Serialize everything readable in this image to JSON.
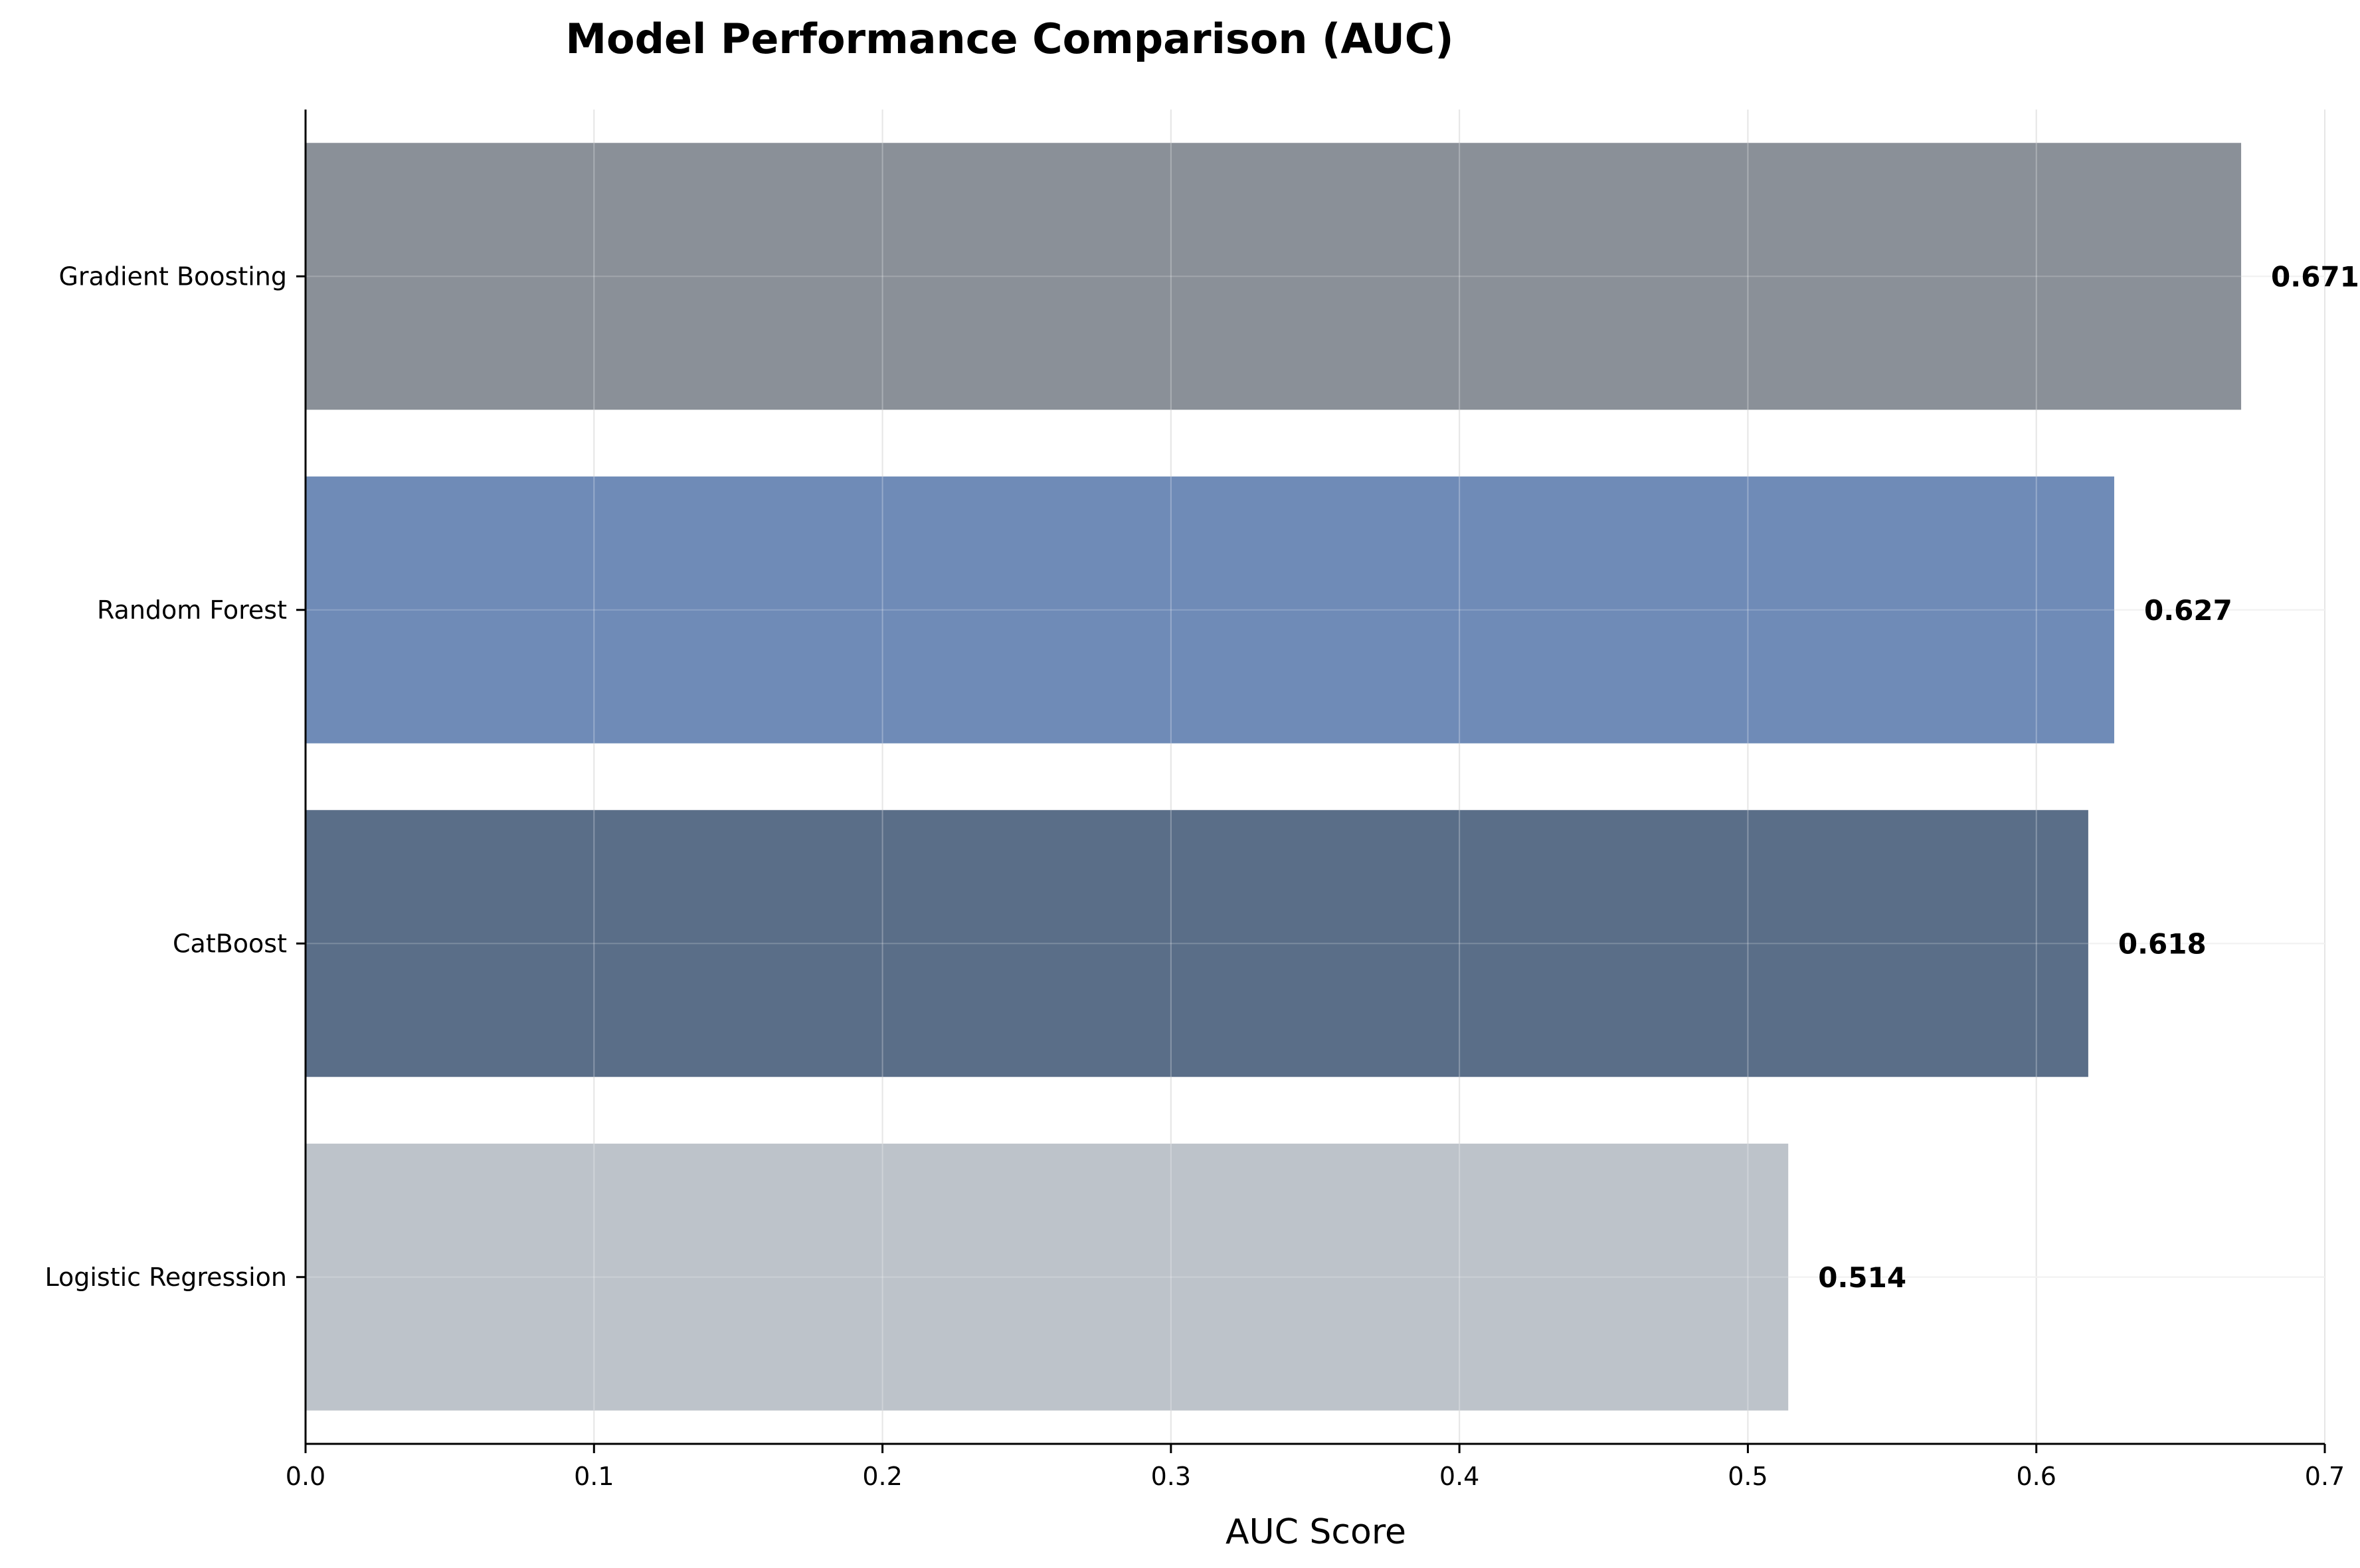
{
  "chart_data": {
    "type": "bar",
    "orientation": "horizontal",
    "title": "Model Performance Comparison (AUC)",
    "xlabel": "AUC Score",
    "ylabel": "",
    "xlim": [
      0,
      0.7
    ],
    "x_ticks": [
      "0.0",
      "0.1",
      "0.2",
      "0.3",
      "0.4",
      "0.5",
      "0.6",
      "0.7"
    ],
    "x_tick_values": [
      0,
      0.1,
      0.2,
      0.3,
      0.4,
      0.5,
      0.6,
      0.7
    ],
    "grid": true,
    "categories": [
      "Gradient Boosting",
      "Random Forest",
      "CatBoost",
      "Logistic Regression"
    ],
    "values": [
      0.671,
      0.627,
      0.618,
      0.514
    ],
    "value_labels": [
      "0.671",
      "0.627",
      "0.618",
      "0.514"
    ],
    "colors": [
      "#8a9098",
      "#6f8bb7",
      "#5a6e88",
      "#bdc3ca"
    ]
  }
}
